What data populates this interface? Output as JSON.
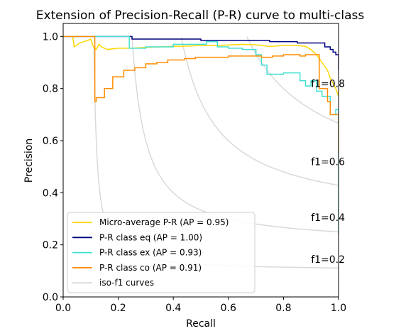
{
  "chart_data": {
    "type": "line",
    "title": "Extension of Precision-Recall (P-R) curve to multi-class",
    "xlabel": "Recall",
    "ylabel": "Precision",
    "xlim": [
      0.0,
      1.0
    ],
    "ylim": [
      0.0,
      1.05
    ],
    "xticks": [
      "0.0",
      "0.2",
      "0.4",
      "0.6",
      "0.8",
      "1.0"
    ],
    "yticks": [
      "0.0",
      "0.2",
      "0.4",
      "0.6",
      "0.8",
      "1.0"
    ],
    "grid": false,
    "legend_position": "lower-left",
    "iso_f1": {
      "label": "iso-f1 curves",
      "color": "#d9d9d9",
      "levels": [
        {
          "f": 0.2,
          "label": "f1=0.2"
        },
        {
          "f": 0.4,
          "label": "f1=0.4"
        },
        {
          "f": 0.6,
          "label": "f1=0.6"
        },
        {
          "f": 0.8,
          "label": "f1=0.8"
        }
      ]
    },
    "series": [
      {
        "name": "Micro-average P-R (AP = 0.95)",
        "color": "#ffd700",
        "step": false,
        "points": [
          [
            0.0,
            1.0
          ],
          [
            0.035,
            1.0
          ],
          [
            0.04,
            0.96
          ],
          [
            0.06,
            0.975
          ],
          [
            0.09,
            0.985
          ],
          [
            0.1,
            0.99
          ],
          [
            0.11,
            0.96
          ],
          [
            0.12,
            0.95
          ],
          [
            0.13,
            0.97
          ],
          [
            0.14,
            0.96
          ],
          [
            0.16,
            0.95
          ],
          [
            0.2,
            0.955
          ],
          [
            0.25,
            0.955
          ],
          [
            0.3,
            0.958
          ],
          [
            0.35,
            0.96
          ],
          [
            0.4,
            0.962
          ],
          [
            0.45,
            0.963
          ],
          [
            0.5,
            0.965
          ],
          [
            0.55,
            0.965
          ],
          [
            0.6,
            0.967
          ],
          [
            0.65,
            0.97
          ],
          [
            0.7,
            0.968
          ],
          [
            0.75,
            0.962
          ],
          [
            0.8,
            0.965
          ],
          [
            0.85,
            0.965
          ],
          [
            0.88,
            0.962
          ],
          [
            0.9,
            0.95
          ],
          [
            0.92,
            0.93
          ],
          [
            0.94,
            0.9
          ],
          [
            0.96,
            0.87
          ],
          [
            0.97,
            0.84
          ],
          [
            0.98,
            0.82
          ],
          [
            0.99,
            0.8
          ],
          [
            1.0,
            0.77
          ]
        ]
      },
      {
        "name": "P-R class eq (AP = 1.00)",
        "color": "#000080",
        "step": true,
        "points": [
          [
            0.0,
            1.0
          ],
          [
            0.25,
            1.0
          ],
          [
            0.25,
            0.99
          ],
          [
            0.5,
            0.99
          ],
          [
            0.5,
            0.985
          ],
          [
            0.75,
            0.985
          ],
          [
            0.75,
            0.98
          ],
          [
            0.85,
            0.98
          ],
          [
            0.85,
            0.975
          ],
          [
            0.95,
            0.975
          ],
          [
            0.95,
            0.96
          ],
          [
            0.97,
            0.96
          ],
          [
            0.97,
            0.95
          ],
          [
            0.98,
            0.95
          ],
          [
            0.98,
            0.94
          ],
          [
            0.99,
            0.94
          ],
          [
            0.99,
            0.93
          ],
          [
            1.0,
            0.93
          ],
          [
            1.0,
            0.87
          ]
        ]
      },
      {
        "name": "P-R class ex (AP = 0.93)",
        "color": "#40e0d0",
        "step": true,
        "points": [
          [
            0.0,
            1.0
          ],
          [
            0.24,
            1.0
          ],
          [
            0.24,
            0.955
          ],
          [
            0.3,
            0.955
          ],
          [
            0.3,
            0.96
          ],
          [
            0.4,
            0.96
          ],
          [
            0.4,
            0.97
          ],
          [
            0.52,
            0.97
          ],
          [
            0.52,
            0.98
          ],
          [
            0.56,
            0.98
          ],
          [
            0.56,
            0.96
          ],
          [
            0.6,
            0.96
          ],
          [
            0.6,
            0.955
          ],
          [
            0.65,
            0.955
          ],
          [
            0.65,
            0.95
          ],
          [
            0.7,
            0.95
          ],
          [
            0.7,
            0.93
          ],
          [
            0.72,
            0.93
          ],
          [
            0.72,
            0.89
          ],
          [
            0.74,
            0.89
          ],
          [
            0.74,
            0.855
          ],
          [
            0.8,
            0.855
          ],
          [
            0.8,
            0.86
          ],
          [
            0.86,
            0.86
          ],
          [
            0.86,
            0.83
          ],
          [
            0.88,
            0.83
          ],
          [
            0.88,
            0.81
          ],
          [
            0.9,
            0.81
          ],
          [
            0.9,
            0.83
          ],
          [
            0.92,
            0.83
          ],
          [
            0.92,
            0.79
          ],
          [
            0.94,
            0.79
          ],
          [
            0.94,
            0.77
          ],
          [
            0.97,
            0.77
          ],
          [
            0.97,
            0.7
          ],
          [
            0.99,
            0.7
          ],
          [
            0.99,
            0.72
          ],
          [
            1.0,
            0.72
          ],
          [
            1.0,
            0.24
          ]
        ]
      },
      {
        "name": "P-R class co (AP = 0.91)",
        "color": "#ff8c00",
        "step": true,
        "points": [
          [
            0.0,
            1.0
          ],
          [
            0.115,
            1.0
          ],
          [
            0.115,
            0.75
          ],
          [
            0.12,
            0.75
          ],
          [
            0.12,
            0.765
          ],
          [
            0.15,
            0.765
          ],
          [
            0.15,
            0.8
          ],
          [
            0.18,
            0.8
          ],
          [
            0.18,
            0.845
          ],
          [
            0.22,
            0.845
          ],
          [
            0.22,
            0.87
          ],
          [
            0.26,
            0.87
          ],
          [
            0.26,
            0.88
          ],
          [
            0.3,
            0.88
          ],
          [
            0.3,
            0.895
          ],
          [
            0.34,
            0.895
          ],
          [
            0.34,
            0.9
          ],
          [
            0.38,
            0.9
          ],
          [
            0.38,
            0.91
          ],
          [
            0.44,
            0.91
          ],
          [
            0.44,
            0.915
          ],
          [
            0.48,
            0.915
          ],
          [
            0.48,
            0.92
          ],
          [
            0.6,
            0.92
          ],
          [
            0.6,
            0.925
          ],
          [
            0.72,
            0.925
          ],
          [
            0.72,
            0.92
          ],
          [
            0.76,
            0.92
          ],
          [
            0.76,
            0.925
          ],
          [
            0.8,
            0.925
          ],
          [
            0.8,
            0.93
          ],
          [
            0.86,
            0.93
          ],
          [
            0.86,
            0.925
          ],
          [
            0.88,
            0.925
          ],
          [
            0.88,
            0.93
          ],
          [
            0.93,
            0.93
          ],
          [
            0.93,
            0.8
          ],
          [
            0.96,
            0.8
          ],
          [
            0.96,
            0.75
          ],
          [
            0.97,
            0.75
          ],
          [
            0.97,
            0.7
          ],
          [
            1.0,
            0.7
          ],
          [
            1.0,
            0.55
          ]
        ]
      }
    ]
  }
}
